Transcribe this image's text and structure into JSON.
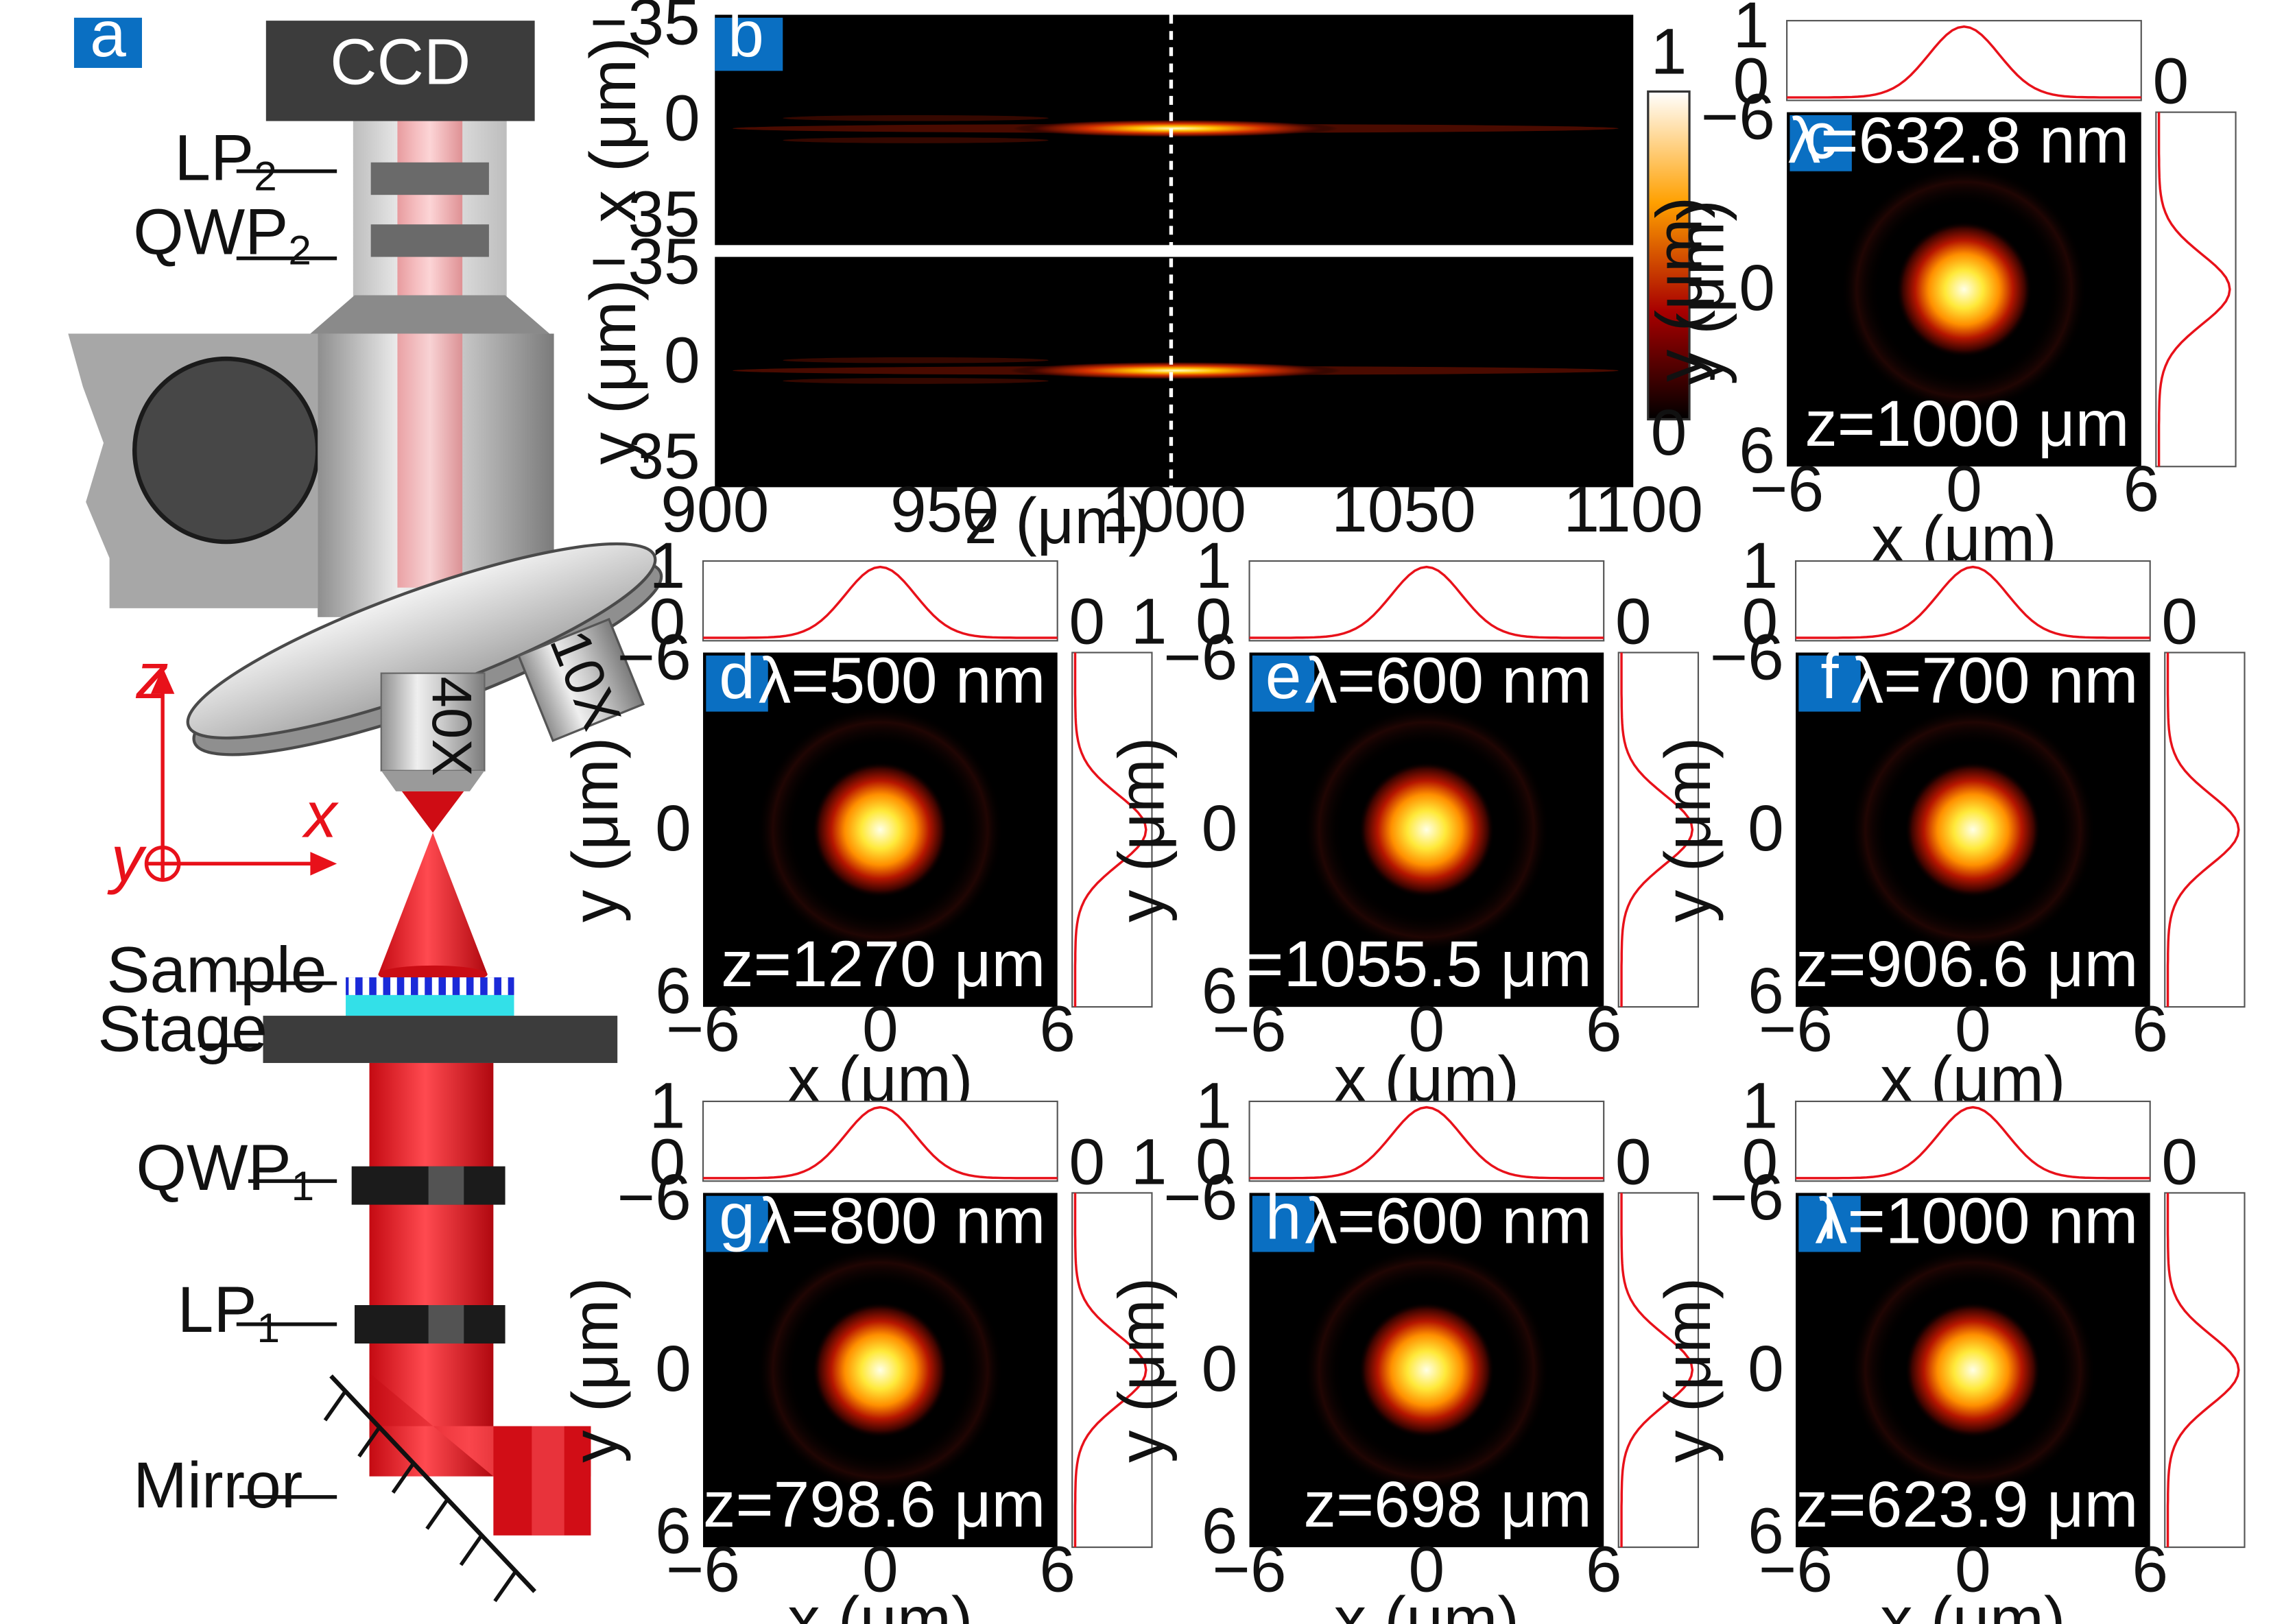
{
  "setup": {
    "tag": "a",
    "ccd": "CCD",
    "lp2_base": "LP",
    "lp2_sub": "2",
    "qwp2_base": "QWP",
    "qwp2_sub": "2",
    "obj40": "40X",
    "obj10": "10X",
    "axis_z": "z",
    "axis_x": "x",
    "axis_y": "y",
    "sample": "Sample",
    "stage": "Stage",
    "qwp1_base": "QWP",
    "qwp1_sub": "1",
    "lp1_base": "LP",
    "lp1_sub": "1",
    "mirror": "Mirror",
    "colors": {
      "beam": "#e8111a",
      "sample_top": "#1a2ad8",
      "substrate": "#33e0e8",
      "tag_bg": "#0a6fc2"
    }
  },
  "panel_b": {
    "tag": "b",
    "x_ticks": [
      "900",
      "950",
      "1000",
      "1050",
      "1100"
    ],
    "x_label": "z (μm)",
    "top_ticks": [
      "−35",
      "0",
      "35"
    ],
    "top_label": "x (μm)",
    "bot_ticks": [
      "−35",
      "0",
      "35"
    ],
    "bot_label": "y (μm)",
    "cbar_max": "1",
    "cbar_min": "0",
    "cbar_label": "y (μm)",
    "focus_z": 1000
  },
  "spots": [
    {
      "tag": "c",
      "lambda": "λ=632.8 nm",
      "z": "z=1000 μm"
    },
    {
      "tag": "d",
      "lambda": "λ=500 nm",
      "z": "z=1270 μm"
    },
    {
      "tag": "e",
      "lambda": "λ=600 nm",
      "z": "z=1055.5 μm"
    },
    {
      "tag": "f",
      "lambda": "λ=700 nm",
      "z": "z=906.6 μm"
    },
    {
      "tag": "g",
      "lambda": "λ=800 nm",
      "z": "z=798.6 μm"
    },
    {
      "tag": "h",
      "lambda": "λ=600 nm",
      "z": "z=698 μm"
    },
    {
      "tag": "i",
      "lambda": "λ=1000 nm",
      "z": "z=623.9 μm"
    }
  ],
  "spot_axes": {
    "x_ticks": [
      "−6",
      "0",
      "6"
    ],
    "y_ticks": [
      "−6",
      "0",
      "6"
    ],
    "x_label": "x (μm)",
    "y_label": "y (μm)",
    "profile_one": "1",
    "profile_zero": "0"
  }
}
